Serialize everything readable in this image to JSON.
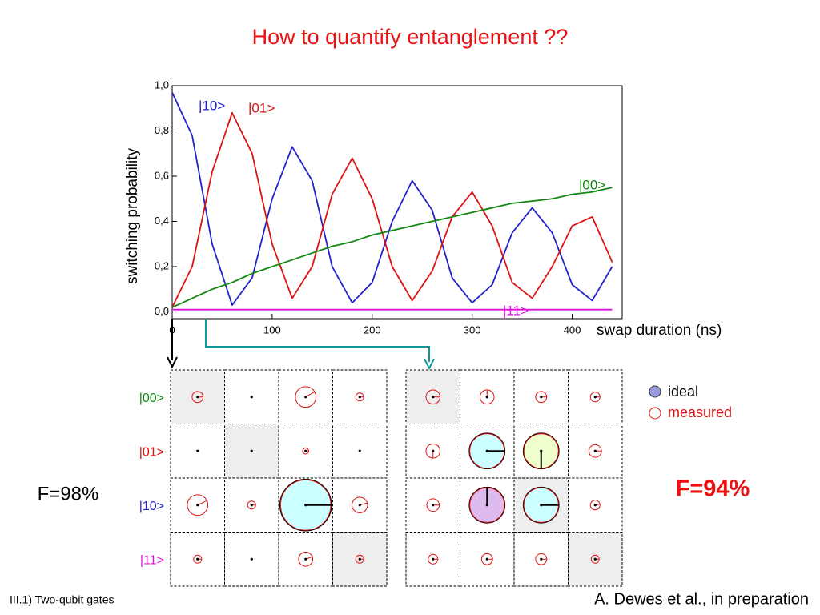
{
  "title": "How to quantify entanglement ??",
  "chart_data": {
    "type": "line",
    "xlabel": "swap duration (ns)",
    "ylabel": "switching probability",
    "x": [
      0,
      20,
      40,
      60,
      80,
      100,
      120,
      140,
      160,
      180,
      200,
      220,
      240,
      260,
      280,
      300,
      320,
      340,
      360,
      380,
      400,
      420,
      440
    ],
    "series": [
      {
        "name": "|10>",
        "color": "#2222cc",
        "values": [
          0.97,
          0.78,
          0.3,
          0.03,
          0.15,
          0.5,
          0.73,
          0.58,
          0.2,
          0.04,
          0.13,
          0.4,
          0.58,
          0.45,
          0.15,
          0.04,
          0.12,
          0.35,
          0.46,
          0.35,
          0.12,
          0.05,
          0.2
        ]
      },
      {
        "name": "|01>",
        "color": "#dd1111",
        "values": [
          0.02,
          0.2,
          0.62,
          0.88,
          0.7,
          0.3,
          0.06,
          0.2,
          0.52,
          0.68,
          0.5,
          0.2,
          0.05,
          0.18,
          0.42,
          0.53,
          0.38,
          0.13,
          0.06,
          0.2,
          0.38,
          0.42,
          0.22
        ]
      },
      {
        "name": "|00>",
        "color": "#118811",
        "values": [
          0.02,
          0.06,
          0.1,
          0.13,
          0.17,
          0.2,
          0.23,
          0.26,
          0.29,
          0.31,
          0.34,
          0.36,
          0.38,
          0.4,
          0.42,
          0.44,
          0.46,
          0.48,
          0.49,
          0.5,
          0.52,
          0.53,
          0.55
        ]
      },
      {
        "name": "|11>",
        "color": "#dd11dd",
        "values": [
          0.01,
          0.01,
          0.01,
          0.01,
          0.01,
          0.01,
          0.01,
          0.01,
          0.01,
          0.01,
          0.01,
          0.01,
          0.01,
          0.01,
          0.01,
          0.01,
          0.01,
          0.01,
          0.01,
          0.01,
          0.01,
          0.01,
          0.01
        ]
      }
    ],
    "xlim": [
      0,
      450
    ],
    "xticks": [
      0,
      100,
      200,
      300,
      400
    ],
    "ylim": [
      -0.03,
      1.0
    ],
    "yticks": [
      {
        "value": 0,
        "label": "0,0"
      },
      {
        "value": 0.2,
        "label": "0,2"
      },
      {
        "value": 0.4,
        "label": "0,4"
      },
      {
        "value": 0.6,
        "label": "0,6"
      },
      {
        "value": 0.8,
        "label": "0,8"
      },
      {
        "value": 1,
        "label": "1,0"
      }
    ]
  },
  "matrices": {
    "row_labels": [
      "|00>",
      "|01>",
      "|10>",
      "|11>"
    ],
    "row_colors": [
      "#118811",
      "#dd1111",
      "#2222cc",
      "#dd11dd"
    ],
    "left": {
      "fidelity": "F=98%",
      "shaded": [
        [
          0,
          0
        ],
        [
          1,
          1
        ],
        [
          3,
          3
        ]
      ],
      "cells": [
        [
          [
            0.22,
            0,
            null
          ],
          [
            0,
            0,
            null
          ],
          [
            0.41,
            30,
            null
          ],
          [
            0.16,
            0,
            null
          ]
        ],
        [
          [
            0,
            0,
            null
          ],
          [
            0,
            0,
            null
          ],
          [
            0.12,
            0,
            null
          ],
          [
            0,
            0,
            null
          ]
        ],
        [
          [
            0.41,
            25,
            null
          ],
          [
            0.16,
            0,
            null
          ],
          [
            1,
            0,
            "#ccffff"
          ],
          [
            0.31,
            15,
            null
          ]
        ],
        [
          [
            0.16,
            0,
            null
          ],
          [
            0,
            0,
            null
          ],
          [
            0.28,
            20,
            null
          ],
          [
            0.16,
            0,
            null
          ]
        ]
      ]
    },
    "right": {
      "fidelity": "F=94%",
      "shaded": [
        [
          0,
          0
        ],
        [
          2,
          2
        ],
        [
          3,
          3
        ]
      ],
      "cells": [
        [
          [
            0.28,
            0,
            null
          ],
          [
            0.28,
            90,
            null
          ],
          [
            0.22,
            0,
            null
          ],
          [
            0.19,
            0,
            null
          ]
        ],
        [
          [
            0.28,
            -90,
            null
          ],
          [
            0.69,
            0,
            "#ccffff"
          ],
          [
            0.69,
            -90,
            "#eeffcc"
          ],
          [
            0.25,
            0,
            null
          ]
        ],
        [
          [
            0.25,
            0,
            null
          ],
          [
            0.69,
            90,
            "#ddbbee"
          ],
          [
            0.69,
            0,
            "#ccffff"
          ],
          [
            0.19,
            10,
            null
          ]
        ],
        [
          [
            0.19,
            0,
            null
          ],
          [
            0.22,
            0,
            null
          ],
          [
            0.22,
            0,
            null
          ],
          [
            0.16,
            0,
            null
          ]
        ]
      ]
    }
  },
  "legend": {
    "ideal": "ideal",
    "measured": "measured"
  },
  "footer": {
    "section": "III.1) Two-qubit gates",
    "citation": "A. Dewes et al., in preparation"
  }
}
